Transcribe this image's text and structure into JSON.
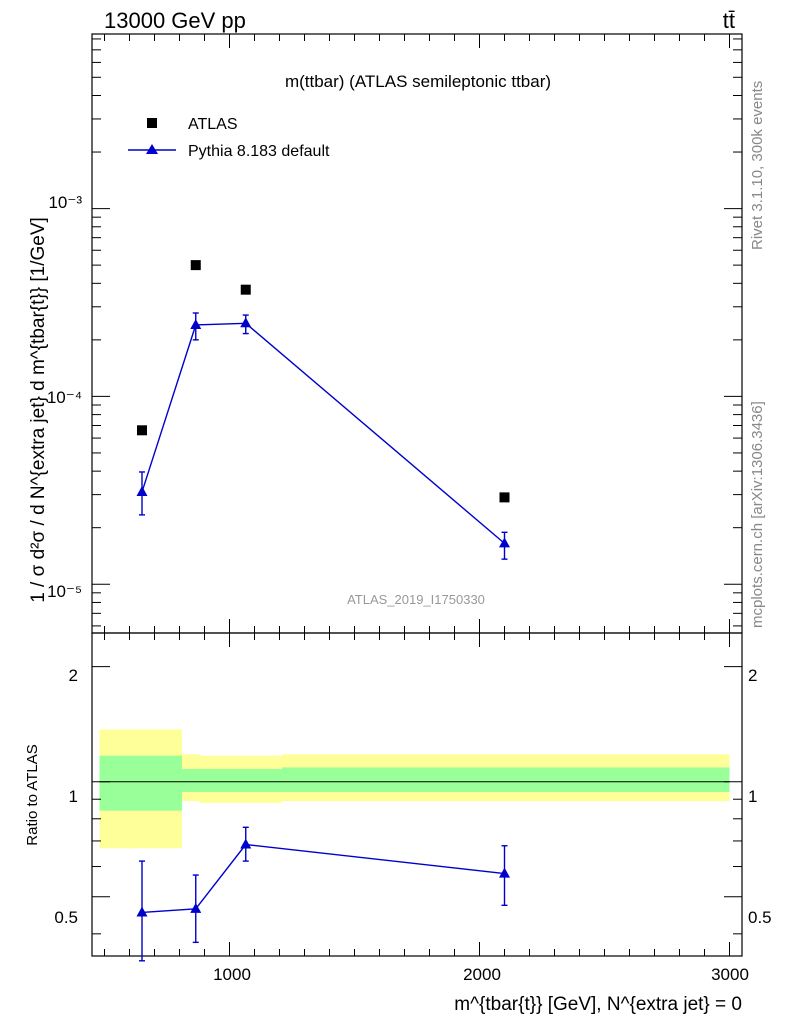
{
  "header": {
    "energy_label": "13000 GeV pp",
    "process_label": "tt̄"
  },
  "side_labels": {
    "rivet": "Rivet 3.1.10,  300k events",
    "mcplots": "mcplots.cern.ch [arXiv:1306.3436]"
  },
  "main_panel": {
    "title": "m(ttbar) (ATLAS semileptonic ttbar)",
    "watermark": "ATLAS_2019_I1750330",
    "ylabel": "1 / σ d²σ / d N^{extra jet} d m^{tbar{t}} [1/GeV]",
    "ytick_labels": [
      "10⁻³",
      "10⁻⁴",
      "10⁻⁵"
    ],
    "legend": {
      "data_label": "ATLAS",
      "mc_label": "Pythia 8.183 default"
    }
  },
  "ratio_panel": {
    "ylabel": "Ratio to ATLAS",
    "ytick_labels": [
      "2",
      "1",
      "0.5"
    ]
  },
  "xaxis": {
    "label": "m^{tbar{t}} [GeV], N^{extra jet} = 0",
    "tick_labels": [
      "1000",
      "2000",
      "3000"
    ]
  },
  "colors": {
    "mc": "#0000cc",
    "band_inner": "#99ff99",
    "band_outer": "#ffff99",
    "data": "#000000"
  },
  "chart_data": {
    "type": "scatter",
    "title": "m(ttbar) (ATLAS semileptonic ttbar)",
    "xlabel": "m^{tbar{t}} [GeV], N^{extra jet} = 0",
    "ylabel": "1 / σ d²σ / d N^{extra jet} d m^{tbar{t}} [1/GeV]",
    "xlim": [
      450,
      3050
    ],
    "ylim": [
      5.5e-06,
      0.0085
    ],
    "yscale": "log",
    "legend_position": "top-left",
    "series": [
      {
        "name": "ATLAS",
        "marker": "square",
        "x": [
          650,
          865,
          1065,
          2100
        ],
        "y": [
          6.6e-05,
          0.0005,
          0.00037,
          2.9e-05
        ]
      },
      {
        "name": "Pythia 8.183 default",
        "marker": "triangle",
        "x": [
          650,
          865,
          1065,
          2100
        ],
        "y": [
          3.1e-05,
          0.00024,
          0.000245,
          1.65e-05
        ],
        "y_err_low": [
          7.6e-06,
          4e-05,
          2.9e-05,
          2.9e-06
        ],
        "y_err_high": [
          8.6e-06,
          3.8e-05,
          2.6e-05,
          2.4e-06
        ]
      }
    ],
    "ratio": {
      "ylabel": "Ratio to ATLAS",
      "ylim": [
        0.35,
        2.45
      ],
      "yscale": "log",
      "reference_line": 1,
      "bins": [
        {
          "x_low": 480,
          "x_high": 810,
          "inner": [
            0.84,
            1.17
          ],
          "outer": [
            0.67,
            1.37
          ]
        },
        {
          "x_low": 810,
          "x_high": 880,
          "inner": [
            0.94,
            1.08
          ],
          "outer": [
            0.89,
            1.18
          ]
        },
        {
          "x_low": 880,
          "x_high": 1210,
          "inner": [
            0.94,
            1.08
          ],
          "outer": [
            0.88,
            1.17
          ]
        },
        {
          "x_low": 1210,
          "x_high": 3000,
          "inner": [
            0.94,
            1.09
          ],
          "outer": [
            0.89,
            1.18
          ]
        }
      ],
      "mc_points": {
        "x": [
          650,
          865,
          1065,
          2100
        ],
        "y": [
          0.455,
          0.465,
          0.685,
          0.575
        ],
        "y_err_low": [
          0.115,
          0.085,
          0.065,
          0.1
        ],
        "y_err_high": [
          0.165,
          0.105,
          0.075,
          0.105
        ]
      }
    }
  }
}
